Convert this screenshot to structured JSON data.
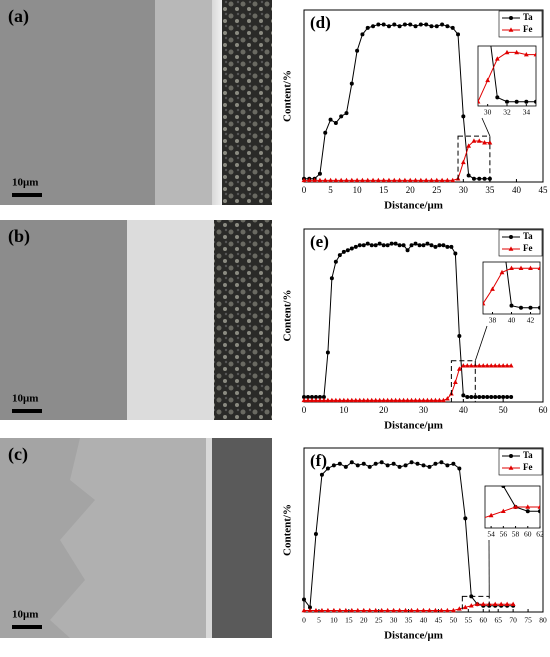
{
  "images": [
    {
      "label": "(a)",
      "scale_bar": "10μm"
    },
    {
      "label": "(b)",
      "scale_bar": "10μm"
    },
    {
      "label": "(c)",
      "scale_bar": "10μm"
    }
  ],
  "chart_data": [
    {
      "type": "line",
      "title": "(d)",
      "x_label": "Distance/μm",
      "y_label": "Content/%",
      "xlim": [
        0,
        45
      ],
      "xticks": [
        0,
        5,
        10,
        15,
        20,
        25,
        30,
        35,
        40,
        45
      ],
      "ylim": [
        0,
        100
      ],
      "legend": "upper right",
      "x": [
        0,
        1,
        2,
        3,
        4,
        5,
        6,
        7,
        8,
        9,
        10,
        11,
        12,
        13,
        14,
        15,
        16,
        17,
        18,
        19,
        20,
        21,
        22,
        23,
        24,
        25,
        26,
        27,
        28,
        29,
        30,
        31,
        32,
        33,
        34,
        35
      ],
      "series": [
        {
          "name": "Ta",
          "color": "#000000",
          "marker": "circle",
          "values": [
            2,
            2,
            2,
            5,
            30,
            38,
            36,
            40,
            42,
            60,
            80,
            90,
            94,
            95,
            96,
            96,
            95,
            96,
            95,
            96,
            96,
            95,
            96,
            96,
            95,
            95,
            96,
            95,
            94,
            90,
            40,
            4,
            2,
            2,
            2,
            2
          ]
        },
        {
          "name": "Fe",
          "color": "#e00000",
          "marker": "triangle",
          "values": [
            1,
            1,
            1,
            1,
            1,
            1,
            1,
            1,
            1,
            1,
            1,
            1,
            1,
            1,
            1,
            1,
            1,
            1,
            1,
            1,
            1,
            1,
            1,
            1,
            1,
            1,
            1,
            1,
            1,
            2,
            12,
            22,
            25,
            25,
            24,
            24
          ]
        }
      ],
      "inset": {
        "xlim": [
          29,
          35
        ],
        "xticks": [
          30,
          32,
          34
        ],
        "ylim": [
          0,
          28
        ]
      }
    },
    {
      "type": "line",
      "title": "(e)",
      "x_label": "Distance/μm",
      "y_label": "Content/%",
      "xlim": [
        0,
        60
      ],
      "xticks": [
        0,
        10,
        20,
        30,
        40,
        50,
        60
      ],
      "ylim": [
        0,
        100
      ],
      "legend": "upper right",
      "x": [
        0,
        1,
        2,
        3,
        4,
        5,
        6,
        7,
        8,
        9,
        10,
        11,
        12,
        13,
        14,
        15,
        16,
        17,
        18,
        19,
        20,
        21,
        22,
        23,
        24,
        25,
        26,
        27,
        28,
        29,
        30,
        31,
        32,
        33,
        34,
        35,
        36,
        37,
        38,
        39,
        40,
        41,
        42,
        43,
        44,
        45,
        46,
        47,
        48,
        49,
        50,
        51,
        52
      ],
      "series": [
        {
          "name": "Ta",
          "color": "#000000",
          "marker": "circle",
          "values": [
            3,
            3,
            3,
            3,
            3,
            3,
            30,
            75,
            85,
            89,
            91,
            92,
            93,
            94,
            95,
            95,
            96,
            95,
            95,
            96,
            95,
            95,
            96,
            96,
            95,
            95,
            92,
            95,
            96,
            95,
            95,
            96,
            95,
            94,
            95,
            95,
            94,
            94,
            90,
            40,
            4,
            3,
            3,
            3,
            3,
            3,
            3,
            3,
            3,
            3,
            3,
            3,
            3
          ]
        },
        {
          "name": "Fe",
          "color": "#e00000",
          "marker": "triangle",
          "values": [
            1,
            1,
            1,
            1,
            1,
            1,
            1,
            1,
            1,
            1,
            1,
            1,
            1,
            1,
            1,
            1,
            1,
            1,
            1,
            1,
            1,
            1,
            1,
            1,
            1,
            1,
            1,
            1,
            1,
            1,
            1,
            1,
            1,
            1,
            1,
            1,
            2,
            5,
            12,
            20,
            22,
            22,
            22,
            22,
            22,
            22,
            22,
            22,
            22,
            22,
            22,
            22,
            22
          ]
        }
      ],
      "inset": {
        "xlim": [
          37,
          43
        ],
        "xticks": [
          38,
          40,
          42
        ],
        "ylim": [
          0,
          25
        ]
      }
    },
    {
      "type": "line",
      "title": "(f)",
      "x_label": "Distance/μm",
      "y_label": "Content/%",
      "xlim": [
        0,
        80
      ],
      "xticks": [
        0,
        5,
        10,
        15,
        20,
        25,
        30,
        35,
        40,
        45,
        50,
        55,
        60,
        65,
        70,
        75,
        80
      ],
      "ylim": [
        0,
        100
      ],
      "legend": "upper right",
      "x": [
        0,
        2,
        4,
        6,
        8,
        10,
        12,
        14,
        16,
        18,
        20,
        22,
        24,
        26,
        28,
        30,
        32,
        34,
        36,
        38,
        40,
        42,
        44,
        46,
        48,
        50,
        52,
        54,
        56,
        58,
        60,
        62,
        64,
        66,
        68,
        70
      ],
      "series": [
        {
          "name": "Ta",
          "color": "#000000",
          "marker": "circle",
          "values": [
            8,
            3,
            50,
            88,
            92,
            94,
            95,
            93,
            96,
            94,
            95,
            93,
            95,
            96,
            94,
            95,
            93,
            94,
            96,
            95,
            94,
            93,
            95,
            96,
            94,
            95,
            92,
            60,
            10,
            5,
            4,
            4,
            4,
            4,
            4,
            4
          ]
        },
        {
          "name": "Fe",
          "color": "#e00000",
          "marker": "triangle",
          "values": [
            1,
            1,
            1,
            1,
            1,
            1,
            1,
            1,
            1,
            1,
            1,
            1,
            1,
            1,
            1,
            1,
            1,
            1,
            1,
            1,
            1,
            1,
            1,
            1,
            1,
            1,
            2,
            3,
            4,
            5,
            5,
            5,
            5,
            5,
            5,
            5
          ]
        }
      ],
      "inset": {
        "xlim": [
          53,
          62
        ],
        "xticks": [
          54,
          56,
          58,
          60,
          62
        ],
        "ylim": [
          0,
          10
        ]
      }
    }
  ]
}
